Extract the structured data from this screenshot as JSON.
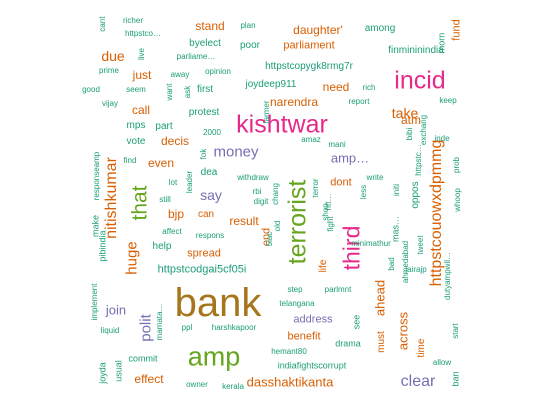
{
  "palette": {
    "teal": "#1b9e77",
    "orange": "#d95f02",
    "purple": "#7570b3",
    "pink": "#e7298a",
    "green": "#66a61e",
    "gold": "#a6761d"
  },
  "words": [
    {
      "text": "bank",
      "color": "gold"
    },
    {
      "text": "amp",
      "color": "green"
    },
    {
      "text": "terrorist",
      "color": "green"
    },
    {
      "text": "kishtwar",
      "color": "pink"
    },
    {
      "text": "incid",
      "color": "pink"
    },
    {
      "text": "third",
      "color": "pink"
    },
    {
      "text": "that",
      "color": "green"
    },
    {
      "text": "httpstcouowxdpmmg",
      "color": "orange"
    },
    {
      "text": "clear",
      "color": "purple"
    },
    {
      "text": "nitishkumar",
      "color": "orange"
    },
    {
      "text": "money",
      "color": "purple"
    },
    {
      "text": "polit",
      "color": "purple"
    },
    {
      "text": "huge",
      "color": "orange"
    },
    {
      "text": "amp…",
      "color": "purple"
    },
    {
      "text": "across",
      "color": "orange"
    },
    {
      "text": "due",
      "color": "orange"
    },
    {
      "text": "say",
      "color": "purple"
    },
    {
      "text": "take",
      "color": "orange"
    },
    {
      "text": "dasshaktikanta",
      "color": "orange"
    },
    {
      "text": "ahead",
      "color": "orange"
    },
    {
      "text": "join",
      "color": "purple"
    },
    {
      "text": "effect",
      "color": "orange"
    },
    {
      "text": "daughter'",
      "color": "orange"
    },
    {
      "text": "narendra",
      "color": "orange"
    },
    {
      "text": "atm",
      "color": "orange"
    },
    {
      "text": "result",
      "color": "orange"
    },
    {
      "text": "bjp",
      "color": "orange"
    },
    {
      "text": "need",
      "color": "orange"
    },
    {
      "text": "stand",
      "color": "orange"
    },
    {
      "text": "just",
      "color": "orange"
    },
    {
      "text": "even",
      "color": "orange"
    },
    {
      "text": "call",
      "color": "orange"
    },
    {
      "text": "decis",
      "color": "orange"
    },
    {
      "text": "spread",
      "color": "orange"
    },
    {
      "text": "benefit",
      "color": "orange"
    },
    {
      "text": "address",
      "color": "purple"
    },
    {
      "text": "parliament",
      "color": "orange"
    },
    {
      "text": "httpstcodgai5cf05i",
      "color": "teal"
    },
    {
      "text": "dont",
      "color": "orange"
    },
    {
      "text": "end",
      "color": "orange"
    },
    {
      "text": "life",
      "color": "orange"
    },
    {
      "text": "must",
      "color": "orange"
    },
    {
      "text": "time",
      "color": "orange"
    },
    {
      "text": "httpstcopygk8rmg7r",
      "color": "teal"
    },
    {
      "text": "protest",
      "color": "teal"
    },
    {
      "text": "poor",
      "color": "teal"
    },
    {
      "text": "fund",
      "color": "orange"
    },
    {
      "text": "oppos",
      "color": "teal"
    },
    {
      "text": "among",
      "color": "teal"
    },
    {
      "text": "finmininindia",
      "color": "teal"
    },
    {
      "text": "byelect",
      "color": "teal"
    },
    {
      "text": "first",
      "color": "teal"
    },
    {
      "text": "help",
      "color": "teal"
    },
    {
      "text": "can",
      "color": "orange"
    },
    {
      "text": "vote",
      "color": "teal"
    },
    {
      "text": "mps",
      "color": "teal"
    },
    {
      "text": "part",
      "color": "teal"
    },
    {
      "text": "dea",
      "color": "teal"
    },
    {
      "text": "joydeep911",
      "color": "teal"
    },
    {
      "text": "indiafightscorrupt",
      "color": "teal"
    },
    {
      "text": "drama",
      "color": "teal"
    },
    {
      "text": "see",
      "color": "teal"
    },
    {
      "text": "ban",
      "color": "teal"
    },
    {
      "text": "morn",
      "color": "teal"
    },
    {
      "text": "mas…",
      "color": "teal"
    },
    {
      "text": "pibindia",
      "color": "teal"
    },
    {
      "text": "make",
      "color": "teal"
    },
    {
      "text": "commit",
      "color": "teal"
    },
    {
      "text": "joyda",
      "color": "teal"
    },
    {
      "text": "usual",
      "color": "teal"
    },
    {
      "text": "kerala",
      "color": "teal"
    },
    {
      "text": "owner",
      "color": "teal"
    },
    {
      "text": "hemant80",
      "color": "teal"
    },
    {
      "text": "telangana",
      "color": "teal"
    },
    {
      "text": "parlmnt",
      "color": "teal"
    },
    {
      "text": "step",
      "color": "teal"
    },
    {
      "text": "harshkapoor",
      "color": "teal"
    },
    {
      "text": "ppl",
      "color": "teal"
    },
    {
      "text": "mamata…",
      "color": "teal"
    },
    {
      "text": "liquid",
      "color": "teal"
    },
    {
      "text": "implement",
      "color": "teal"
    },
    {
      "text": "affect",
      "color": "teal"
    },
    {
      "text": "still",
      "color": "teal"
    },
    {
      "text": "lot",
      "color": "teal"
    },
    {
      "text": "find",
      "color": "teal"
    },
    {
      "text": "responseamp",
      "color": "teal"
    },
    {
      "text": "2000",
      "color": "teal"
    },
    {
      "text": "fok",
      "color": "teal"
    },
    {
      "text": "leader",
      "color": "teal"
    },
    {
      "text": "withdraw",
      "color": "teal"
    },
    {
      "text": "rbi",
      "color": "teal"
    },
    {
      "text": "digit",
      "color": "teal"
    },
    {
      "text": "chang",
      "color": "teal"
    },
    {
      "text": "old",
      "color": "teal"
    },
    {
      "text": "5lac",
      "color": "teal"
    },
    {
      "text": "respons",
      "color": "teal"
    },
    {
      "text": "terror",
      "color": "teal"
    },
    {
      "text": "shop",
      "color": "teal"
    },
    {
      "text": "htt…",
      "color": "teal"
    },
    {
      "text": "fight",
      "color": "teal"
    },
    {
      "text": "less",
      "color": "teal"
    },
    {
      "text": "write",
      "color": "teal"
    },
    {
      "text": "initi",
      "color": "teal"
    },
    {
      "text": "minimathur",
      "color": "teal"
    },
    {
      "text": "bad",
      "color": "teal"
    },
    {
      "text": "ahmedabad",
      "color": "teal"
    },
    {
      "text": "tweet",
      "color": "teal"
    },
    {
      "text": "jairajp",
      "color": "teal"
    },
    {
      "text": "dutyampwil…",
      "color": "teal"
    },
    {
      "text": "whoop",
      "color": "teal"
    },
    {
      "text": "prob",
      "color": "teal"
    },
    {
      "text": "inde",
      "color": "teal"
    },
    {
      "text": "keep",
      "color": "teal"
    },
    {
      "text": "exchang",
      "color": "teal"
    },
    {
      "text": "httpstc…",
      "color": "teal"
    },
    {
      "text": "bibi",
      "color": "teal"
    },
    {
      "text": "amaz",
      "color": "teal"
    },
    {
      "text": "mani",
      "color": "teal"
    },
    {
      "text": "report",
      "color": "teal"
    },
    {
      "text": "rich",
      "color": "teal"
    },
    {
      "text": "farmer",
      "color": "teal"
    },
    {
      "text": "opinion",
      "color": "teal"
    },
    {
      "text": "away",
      "color": "teal"
    },
    {
      "text": "want",
      "color": "teal"
    },
    {
      "text": "ask",
      "color": "teal"
    },
    {
      "text": "parliame…",
      "color": "teal"
    },
    {
      "text": "plan",
      "color": "teal"
    },
    {
      "text": "httpstco…",
      "color": "teal"
    },
    {
      "text": "richer",
      "color": "teal"
    },
    {
      "text": "cant",
      "color": "teal"
    },
    {
      "text": "live",
      "color": "teal"
    },
    {
      "text": "prime",
      "color": "teal"
    },
    {
      "text": "good",
      "color": "teal"
    },
    {
      "text": "seem",
      "color": "teal"
    },
    {
      "text": "vijay",
      "color": "teal"
    },
    {
      "text": "start",
      "color": "teal"
    },
    {
      "text": "allow",
      "color": "teal"
    }
  ]
}
